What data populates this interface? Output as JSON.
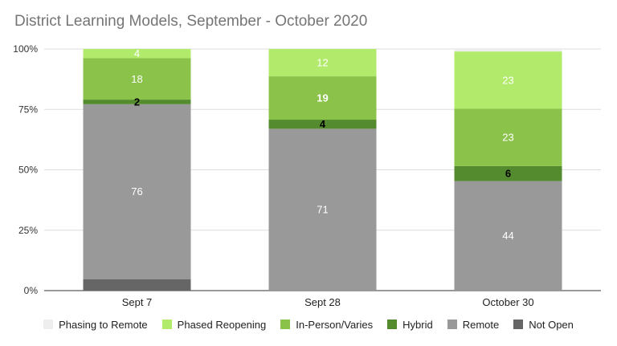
{
  "title": "District Learning Models, September - October 2020",
  "chart_data": {
    "type": "bar",
    "stacked": true,
    "percent": true,
    "title": "District Learning Models, September - October 2020",
    "xlabel": "",
    "ylabel": "",
    "ylim": [
      0,
      100
    ],
    "y_ticks": [
      "0%",
      "25%",
      "50%",
      "75%",
      "100%"
    ],
    "grid": true,
    "legend_position": "bottom",
    "categories": [
      "Sept 7",
      "Sept 28",
      "October 30"
    ],
    "series": [
      {
        "name": "Not Open",
        "color": "#666666",
        "values": [
          5,
          0,
          0
        ],
        "labels": [
          "",
          "",
          ""
        ],
        "label_color": "#ffffff"
      },
      {
        "name": "Remote",
        "color": "#999999",
        "values": [
          76,
          71,
          44
        ],
        "labels": [
          "76",
          "71",
          "44"
        ],
        "label_color": "#ffffff"
      },
      {
        "name": "Hybrid",
        "color": "#558b2f",
        "values": [
          2,
          4,
          6
        ],
        "labels": [
          "2",
          "4",
          "6"
        ],
        "label_color": "#000000"
      },
      {
        "name": "In-Person/Varies",
        "color": "#8bc34a",
        "values": [
          18,
          19,
          23
        ],
        "labels": [
          "18",
          "19",
          "23"
        ],
        "label_color": "#ffffff"
      },
      {
        "name": "Phased Reopening",
        "color": "#b2ea6b",
        "values": [
          4,
          12,
          23
        ],
        "labels": [
          "4",
          "12",
          "23"
        ],
        "label_color": "#ffffff"
      },
      {
        "name": "Phasing to Remote",
        "color": "#eeeeee",
        "values": [
          0,
          0,
          1
        ],
        "labels": [
          "",
          "",
          ""
        ],
        "label_color": "#555555"
      }
    ],
    "legend_order": [
      "Phasing to Remote",
      "Phased Reopening",
      "In-Person/Varies",
      "Hybrid",
      "Remote",
      "Not Open"
    ]
  }
}
